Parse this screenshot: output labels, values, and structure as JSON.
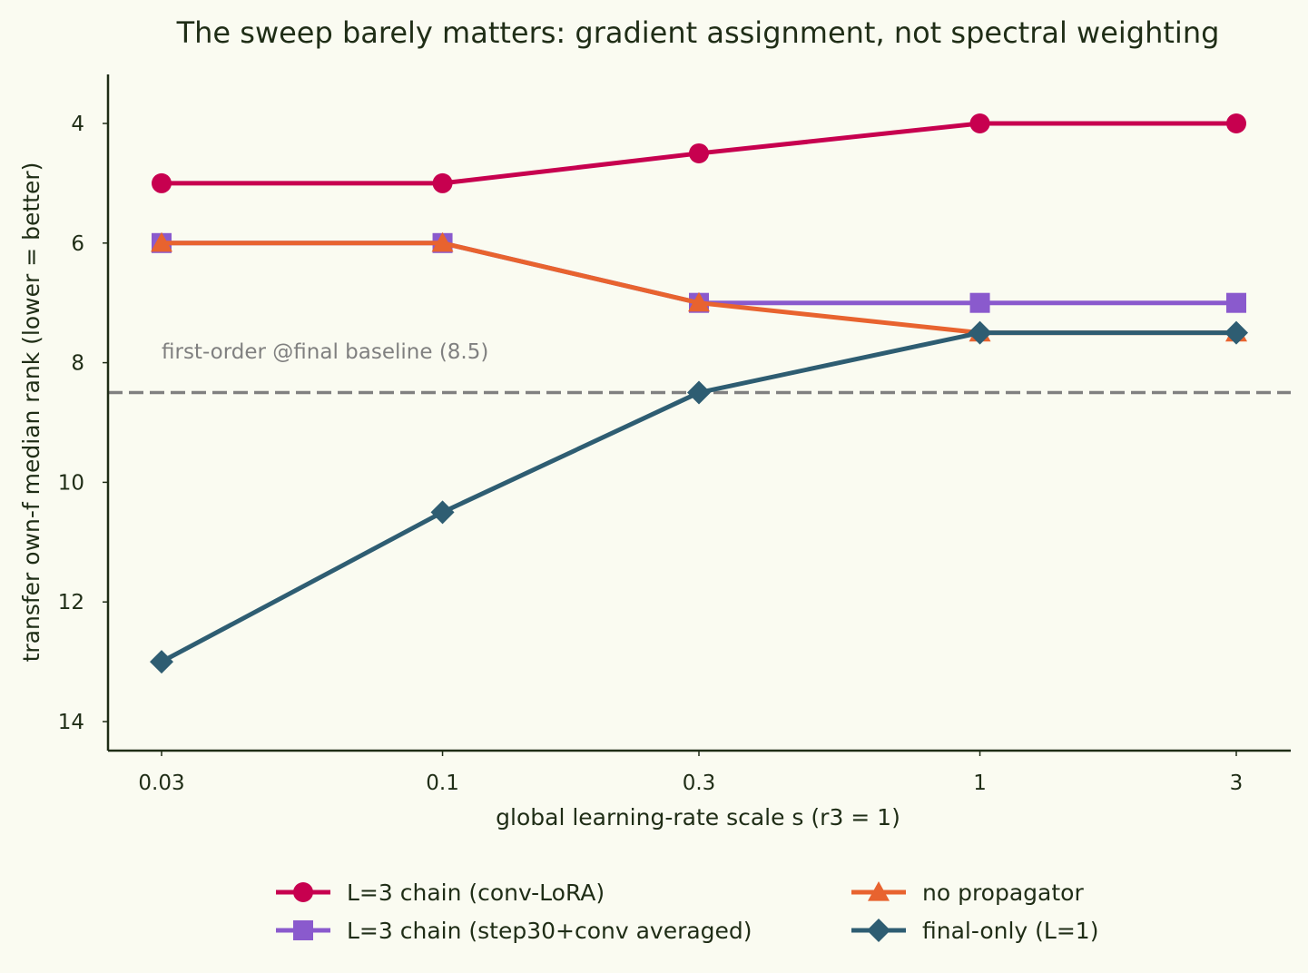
{
  "chart_data": {
    "type": "line",
    "title": "The sweep barely matters: gradient assignment, not spectral weighting",
    "xlabel": "global learning-rate scale s (r3 = 1)",
    "ylabel": "transfer own-f median rank (lower = better)",
    "x": [
      0.03,
      0.1,
      0.3,
      1,
      3
    ],
    "x_tick_labels": [
      "0.03",
      "0.1",
      "0.3",
      "1",
      "3"
    ],
    "x_scale": "log",
    "y_ticks": [
      4,
      6,
      8,
      10,
      12,
      14
    ],
    "ylim": [
      14.5,
      3.2
    ],
    "y_inverted": true,
    "grid": false,
    "legend_position": "bottom",
    "baseline": {
      "value": 8.5,
      "label": "first-order @final baseline (8.5)",
      "color": "#808080"
    },
    "series": [
      {
        "name": "L=3 chain (conv-LoRA)",
        "values": [
          5,
          5,
          4.5,
          4,
          4
        ],
        "color": "#c7004f",
        "marker": "circle"
      },
      {
        "name": "L=3 chain (step30+conv averaged)",
        "values": [
          6,
          6,
          7,
          7,
          7
        ],
        "color": "#8a5acd",
        "marker": "square"
      },
      {
        "name": "no propagator",
        "values": [
          6,
          6,
          7,
          7.5,
          7.5
        ],
        "color": "#e8632f",
        "marker": "triangle"
      },
      {
        "name": "final-only (L=1)",
        "values": [
          13,
          10.5,
          8.5,
          7.5,
          7.5
        ],
        "color": "#2e5d72",
        "marker": "diamond"
      }
    ]
  }
}
